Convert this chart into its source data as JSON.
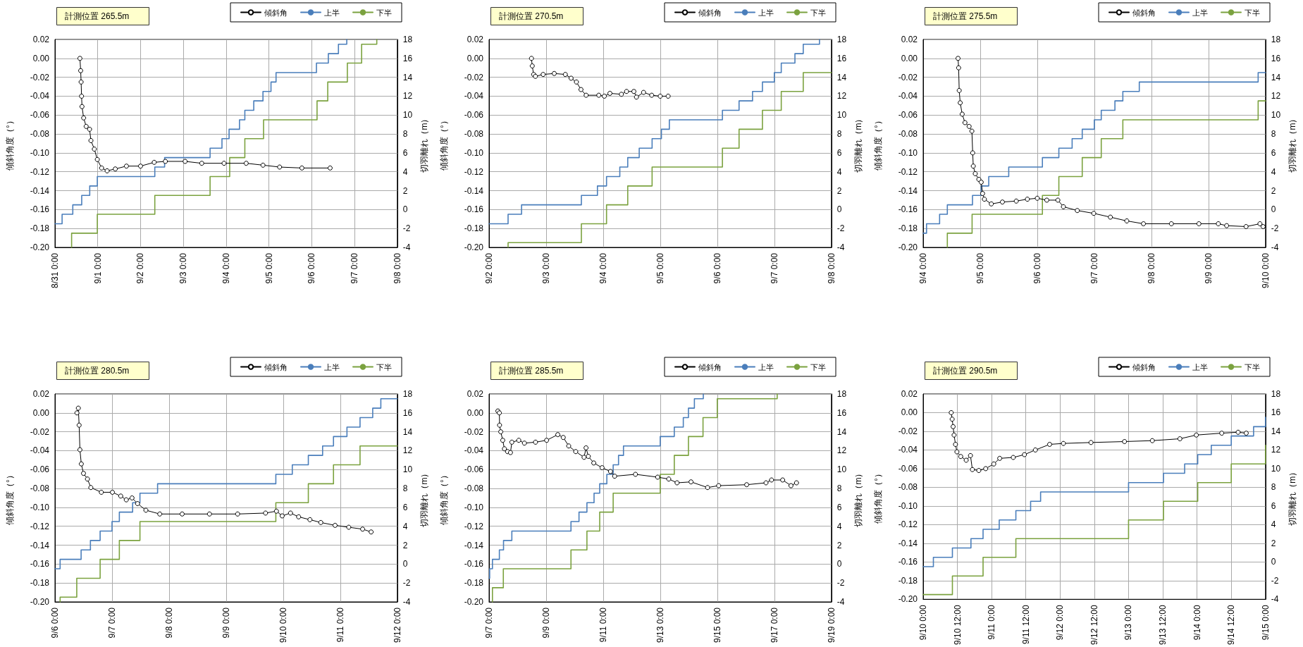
{
  "chart_data": [
    {
      "type": "line",
      "title": "計測位置 265.5m",
      "ylabel": "傾斜角度（°）",
      "y2label": "切羽離れ（m）",
      "grid": true,
      "legend": "top right",
      "xlim": [
        "--08-31T00:00",
        "--09-08T00:00"
      ],
      "xticks": [
        {
          "value": "--08-31T00:00",
          "label": "8/31 0:00"
        },
        {
          "value": "--09-01T00:00",
          "label": "9/1 0:00"
        },
        {
          "value": "--09-02T00:00",
          "label": "9/2 0:00"
        },
        {
          "value": "--09-03T00:00",
          "label": "9/3 0:00"
        },
        {
          "value": "--09-04T00:00",
          "label": "9/4 0:00"
        },
        {
          "value": "--09-05T00:00",
          "label": "9/5 0:00"
        },
        {
          "value": "--09-06T00:00",
          "label": "9/6 0:00"
        },
        {
          "value": "--09-07T00:00",
          "label": "9/7 0:00"
        },
        {
          "value": "--09-08T00:00",
          "label": "9/8 0:00"
        }
      ],
      "ylim": [
        -0.2,
        0.02
      ],
      "yticks": [
        {
          "value": -0.2,
          "label": "-0.20"
        },
        {
          "value": -0.18,
          "label": "-0.18"
        },
        {
          "value": -0.16,
          "label": "-0.16"
        },
        {
          "value": -0.14,
          "label": "-0.14"
        },
        {
          "value": -0.12,
          "label": "-0.12"
        },
        {
          "value": -0.1,
          "label": "-0.10"
        },
        {
          "value": -0.08,
          "label": "-0.08"
        },
        {
          "value": -0.06,
          "label": "-0.06"
        },
        {
          "value": -0.04,
          "label": "-0.04"
        },
        {
          "value": -0.02,
          "label": "-0.02"
        },
        {
          "value": 0,
          "label": "0.00"
        },
        {
          "value": 0.02,
          "label": "0.02"
        }
      ],
      "y2lim": [
        -4,
        18
      ],
      "y2ticks": [
        -4,
        -2,
        0,
        2,
        4,
        6,
        8,
        10,
        12,
        14,
        16,
        18
      ],
      "series": [
        {
          "name": "傾斜角",
          "type": "line",
          "color": "#000000",
          "marker": "circle",
          "x": [
            "--08-31T14:00",
            "--08-31T14:25",
            "--08-31T14:40",
            "--08-31T14:55",
            "--08-31T15:10",
            "--08-31T16:05",
            "--08-31T17:30",
            "--08-31T19:25",
            "--08-31T20:10",
            "--08-31T22:05",
            "--08-31T23:45",
            "--09-01T02:10",
            "--09-01T05:15",
            "--09-01T09:50",
            "--09-01T16:05",
            "--09-02T00:00",
            "--09-02T07:40",
            "--09-02T13:55",
            "--09-03T01:00",
            "--09-03T10:20",
            "--09-03T22:50",
            "--09-04T11:15",
            "--09-04T20:40",
            "--09-05T06:00",
            "--09-05T18:30",
            "--09-06T10:20"
          ],
          "values": [
            0.0,
            -0.013,
            -0.025,
            -0.04,
            -0.051,
            -0.063,
            -0.072,
            -0.075,
            -0.087,
            -0.096,
            -0.107,
            -0.116,
            -0.119,
            -0.117,
            -0.114,
            -0.114,
            -0.11,
            -0.109,
            -0.109,
            -0.111,
            -0.111,
            -0.111,
            -0.113,
            -0.115,
            -0.116,
            -0.116
          ]
        },
        {
          "name": "上半",
          "type": "step",
          "axis": "y2",
          "color": "#4a7ebb",
          "x": [
            "--08-31T00:00",
            "--08-31T04:00",
            "--08-31T10:00",
            "--08-31T15:00",
            "--08-31T19:30",
            "--08-31T23:45",
            "--09-02T08:00",
            "--09-02T13:30",
            "--09-03T15:00",
            "--09-03T21:40",
            "--09-04T01:40",
            "--09-04T07:30",
            "--09-04T10:30",
            "--09-04T15:30",
            "--09-04T20:40",
            "--09-05T01:10",
            "--09-05T04:00",
            "--09-06T02:40",
            "--09-06T09:20",
            "--09-06T15:00",
            "--09-06T19:40"
          ],
          "values": [
            -1.5,
            -0.5,
            0.5,
            1.5,
            2.5,
            3.5,
            4.5,
            5.5,
            6.5,
            7.5,
            8.5,
            9.5,
            10.5,
            11.5,
            12.5,
            13.5,
            14.5,
            15.5,
            16.5,
            17.5,
            18
          ]
        },
        {
          "name": "下半",
          "type": "step",
          "axis": "y2",
          "color": "#7ba23f",
          "x": [
            "--08-31T09:20",
            "--08-31T09:20",
            "--08-31T23:45",
            "--09-02T08:00",
            "--09-03T15:00",
            "--09-04T02:00",
            "--09-04T10:30",
            "--09-04T21:00",
            "--09-06T03:00",
            "--09-06T09:00",
            "--09-06T20:00",
            "--09-07T04:00",
            "--09-07T12:30"
          ],
          "values": [
            -4,
            -2.5,
            -0.5,
            1.5,
            3.5,
            5.5,
            7.5,
            9.5,
            11.5,
            13.5,
            15.5,
            17.5,
            18
          ]
        }
      ]
    },
    {
      "type": "line",
      "title": "計測位置 270.5m",
      "ylabel": "傾斜角度（°）",
      "y2label": "切羽離れ（m）",
      "grid": true,
      "legend": "top right",
      "xlim": [
        "--09-02T00:00",
        "--09-08T00:00"
      ],
      "xticks": [
        {
          "value": "--09-02T00:00",
          "label": "9/2 0:00"
        },
        {
          "value": "--09-03T00:00",
          "label": "9/3 0:00"
        },
        {
          "value": "--09-04T00:00",
          "label": "9/4 0:00"
        },
        {
          "value": "--09-05T00:00",
          "label": "9/5 0:00"
        },
        {
          "value": "--09-06T00:00",
          "label": "9/6 0:00"
        },
        {
          "value": "--09-07T00:00",
          "label": "9/7 0:00"
        },
        {
          "value": "--09-08T00:00",
          "label": "9/8 0:00"
        }
      ],
      "ylim": [
        -0.2,
        0.02
      ],
      "yticks": [
        {
          "value": -0.2,
          "label": "-0.20"
        },
        {
          "value": -0.18,
          "label": "-0.18"
        },
        {
          "value": -0.16,
          "label": "-0.16"
        },
        {
          "value": -0.14,
          "label": "-0.14"
        },
        {
          "value": -0.12,
          "label": "-0.12"
        },
        {
          "value": -0.1,
          "label": "-0.10"
        },
        {
          "value": -0.08,
          "label": "-0.08"
        },
        {
          "value": -0.06,
          "label": "-0.06"
        },
        {
          "value": -0.04,
          "label": "-0.04"
        },
        {
          "value": -0.02,
          "label": "-0.02"
        },
        {
          "value": 0,
          "label": "0.00"
        },
        {
          "value": 0.02,
          "label": "0.02"
        }
      ],
      "y2lim": [
        -4,
        18
      ],
      "y2ticks": [
        -4,
        -2,
        0,
        2,
        4,
        6,
        8,
        10,
        12,
        14,
        16,
        18
      ],
      "series": [
        {
          "name": "傾斜角",
          "type": "line",
          "color": "#000000",
          "marker": "circle",
          "x": [
            "--09-02T17:50",
            "--09-02T18:10",
            "--09-02T18:45",
            "--09-02T19:30",
            "--09-02T22:45",
            "--09-03T03:25",
            "--09-03T08:05",
            "--09-03T10:30",
            "--09-03T12:45",
            "--09-03T14:40",
            "--09-03T16:50",
            "--09-03T22:10",
            "--09-04T00:30",
            "--09-04T02:50",
            "--09-04T07:40",
            "--09-04T09:50",
            "--09-04T12:55",
            "--09-04T14:00",
            "--09-04T17:00",
            "--09-04T20:25",
            "--09-05T00:00",
            "--09-05T03:20"
          ],
          "values": [
            0.0,
            -0.008,
            -0.017,
            -0.019,
            -0.017,
            -0.016,
            -0.017,
            -0.021,
            -0.025,
            -0.033,
            -0.039,
            -0.039,
            -0.04,
            -0.037,
            -0.038,
            -0.035,
            -0.035,
            -0.041,
            -0.036,
            -0.039,
            -0.04,
            -0.04
          ]
        },
        {
          "name": "上半",
          "type": "step",
          "axis": "y2",
          "color": "#4a7ebb",
          "x": [
            "--09-02T00:00",
            "--09-02T08:00",
            "--09-02T13:40",
            "--09-03T14:50",
            "--09-03T21:35",
            "--09-04T01:25",
            "--09-04T07:00",
            "--09-04T10:20",
            "--09-04T15:10",
            "--09-04T20:35",
            "--09-05T00:30",
            "--09-05T03:50",
            "--09-06T02:10",
            "--09-06T09:10",
            "--09-06T14:50",
            "--09-06T19:00",
            "--09-07T00:00",
            "--09-07T02:55",
            "--09-07T08:40",
            "--09-07T12:10",
            "--09-07T19:00"
          ],
          "values": [
            -1.5,
            -0.5,
            0.5,
            1.5,
            2.5,
            3.5,
            4.5,
            5.5,
            6.5,
            7.5,
            8.5,
            9.5,
            10.5,
            11.5,
            12.5,
            13.5,
            14.5,
            15.5,
            16.5,
            17.5,
            18
          ]
        },
        {
          "name": "下半",
          "type": "step",
          "axis": "y2",
          "color": "#7ba23f",
          "x": [
            "--09-02T08:00",
            "--09-02T08:00",
            "--09-03T14:50",
            "--09-04T01:25",
            "--09-04T10:20",
            "--09-04T20:35",
            "--09-06T02:10",
            "--09-06T09:10",
            "--09-06T19:00",
            "--09-07T02:55",
            "--09-07T12:10",
            "--09-08T00:00"
          ],
          "values": [
            -4,
            -3.5,
            -1.5,
            0.5,
            2.5,
            4.5,
            6.5,
            8.5,
            10.5,
            12.5,
            14.5,
            14.5
          ]
        }
      ]
    },
    {
      "type": "line",
      "title": "計測位置 275.5m",
      "ylabel": "傾斜角度（°）",
      "y2label": "切羽離れ（m）",
      "grid": true,
      "legend": "top right",
      "xlim": [
        "--09-04T00:00",
        "--09-10T00:00"
      ],
      "xticks": [
        {
          "value": "--09-04T00:00",
          "label": "9/4 0:00"
        },
        {
          "value": "--09-05T00:00",
          "label": "9/5 0:00"
        },
        {
          "value": "--09-06T00:00",
          "label": "9/6 0:00"
        },
        {
          "value": "--09-07T00:00",
          "label": "9/7 0:00"
        },
        {
          "value": "--09-08T00:00",
          "label": "9/8 0:00"
        },
        {
          "value": "--09-09T00:00",
          "label": "9/9 0:00"
        },
        {
          "value": "--09-10T00:00",
          "label": "9/10 0:00"
        }
      ],
      "ylim": [
        -0.2,
        0.02
      ],
      "yticks": [
        {
          "value": -0.2,
          "label": "-0.20"
        },
        {
          "value": -0.18,
          "label": "-0.18"
        },
        {
          "value": -0.16,
          "label": "-0.16"
        },
        {
          "value": -0.14,
          "label": "-0.14"
        },
        {
          "value": -0.12,
          "label": "-0.12"
        },
        {
          "value": -0.1,
          "label": "-0.10"
        },
        {
          "value": -0.08,
          "label": "-0.08"
        },
        {
          "value": -0.06,
          "label": "-0.06"
        },
        {
          "value": -0.04,
          "label": "-0.04"
        },
        {
          "value": -0.02,
          "label": "-0.02"
        },
        {
          "value": 0,
          "label": "0.00"
        },
        {
          "value": 0.02,
          "label": "0.02"
        }
      ],
      "y2lim": [
        -4,
        18
      ],
      "y2ticks": [
        -4,
        -2,
        0,
        2,
        4,
        6,
        8,
        10,
        12,
        14,
        16,
        18
      ],
      "series": [
        {
          "name": "傾斜角",
          "type": "line",
          "color": "#000000",
          "marker": "circle",
          "x": [
            "--09-04T14:40",
            "--09-04T14:55",
            "--09-04T15:10",
            "--09-04T15:35",
            "--09-04T16:25",
            "--09-04T17:35",
            "--09-04T19:20",
            "--09-04T20:30",
            "--09-04T20:50",
            "--09-04T21:05",
            "--09-04T21:55",
            "--09-04T23:25",
            "--09-05T00:25",
            "--09-05T01:00",
            "--09-05T01:45",
            "--09-05T04:40",
            "--09-05T09:20",
            "--09-05T15:10",
            "--09-05T19:50",
            "--09-06T00:00",
            "--09-06T04:00",
            "--09-06T08:40",
            "--09-06T11:00",
            "--09-06T16:50",
            "--09-06T23:45",
            "--09-07T06:45",
            "--09-07T13:40",
            "--09-07T20:40",
            "--09-08T08:25",
            "--09-08T20:00",
            "--09-09T04:10",
            "--09-09T07:40",
            "--09-09T15:50",
            "--09-09T21:40",
            "--09-09T23:00"
          ],
          "values": [
            0.0,
            -0.01,
            -0.034,
            -0.047,
            -0.059,
            -0.068,
            -0.072,
            -0.077,
            -0.1,
            -0.114,
            -0.122,
            -0.128,
            -0.131,
            -0.143,
            -0.149,
            -0.154,
            -0.152,
            -0.151,
            -0.149,
            -0.148,
            -0.15,
            -0.15,
            -0.157,
            -0.161,
            -0.164,
            -0.168,
            -0.172,
            -0.175,
            -0.175,
            -0.175,
            -0.175,
            -0.177,
            -0.178,
            -0.175,
            -0.178
          ]
        },
        {
          "name": "上半",
          "type": "step",
          "axis": "y2",
          "color": "#4a7ebb",
          "x": [
            "--09-04T00:00",
            "--09-04T01:25",
            "--09-04T06:55",
            "--09-04T10:10",
            "--09-04T20:45",
            "--09-05T00:25",
            "--09-05T03:35",
            "--09-05T12:00",
            "--09-06T02:10",
            "--09-06T09:05",
            "--09-06T14:40",
            "--09-06T18:55",
            "--09-07T00:00",
            "--09-07T02:55",
            "--09-07T08:40",
            "--09-07T12:00",
            "--09-07T18:55",
            "--09-09T20:55",
            "--09-10T00:00"
          ],
          "values": [
            -2.5,
            -1.5,
            -0.5,
            0.5,
            1.5,
            2.5,
            3.5,
            4.5,
            5.5,
            6.5,
            7.5,
            8.5,
            9.5,
            10.5,
            11.5,
            12.5,
            13.5,
            14.5,
            14.5
          ]
        },
        {
          "name": "下半",
          "type": "step",
          "axis": "y2",
          "color": "#7ba23f",
          "x": [
            "--09-04T10:10",
            "--09-04T10:10",
            "--09-04T20:35",
            "--09-06T02:10",
            "--09-06T09:05",
            "--09-06T18:55",
            "--09-07T02:55",
            "--09-07T12:00",
            "--09-09T20:55",
            "--09-10T00:00"
          ],
          "values": [
            -4,
            -2.5,
            -0.5,
            1.5,
            3.5,
            5.5,
            7.5,
            9.5,
            11.5,
            11.5
          ]
        }
      ]
    },
    {
      "type": "line",
      "title": "計測位置 280.5m",
      "ylabel": "傾斜角度（°）",
      "y2label": "切羽離れ（m）",
      "grid": true,
      "legend": "top right",
      "xlim": [
        "--09-06T00:00",
        "--09-12T00:00"
      ],
      "xticks": [
        {
          "value": "--09-06T00:00",
          "label": "9/6 0:00"
        },
        {
          "value": "--09-07T00:00",
          "label": "9/7 0:00"
        },
        {
          "value": "--09-08T00:00",
          "label": "9/8 0:00"
        },
        {
          "value": "--09-09T00:00",
          "label": "9/9 0:00"
        },
        {
          "value": "--09-10T00:00",
          "label": "9/10 0:00"
        },
        {
          "value": "--09-11T00:00",
          "label": "9/11 0:00"
        },
        {
          "value": "--09-12T00:00",
          "label": "9/12 0:00"
        }
      ],
      "ylim": [
        -0.2,
        0.02
      ],
      "yticks": [
        {
          "value": -0.2,
          "label": "-0.20"
        },
        {
          "value": -0.18,
          "label": "-0.18"
        },
        {
          "value": -0.16,
          "label": "-0.16"
        },
        {
          "value": -0.14,
          "label": "-0.14"
        },
        {
          "value": -0.12,
          "label": "-0.12"
        },
        {
          "value": -0.1,
          "label": "-0.10"
        },
        {
          "value": -0.08,
          "label": "-0.08"
        },
        {
          "value": -0.06,
          "label": "-0.06"
        },
        {
          "value": -0.04,
          "label": "-0.04"
        },
        {
          "value": -0.02,
          "label": "-0.02"
        },
        {
          "value": 0,
          "label": "0.00"
        },
        {
          "value": 0.02,
          "label": "0.02"
        }
      ],
      "y2lim": [
        -4,
        18
      ],
      "y2ticks": [
        -4,
        -2,
        0,
        2,
        4,
        6,
        8,
        10,
        12,
        14,
        16,
        18
      ],
      "series": [
        {
          "name": "傾斜角",
          "type": "line",
          "color": "#000000",
          "marker": "circle",
          "x": [
            "--09-06T09:15",
            "--09-06T09:50",
            "--09-06T10:10",
            "--09-06T10:30",
            "--09-06T11:05",
            "--09-06T12:00",
            "--09-06T13:40",
            "--09-06T15:05",
            "--09-06T19:30",
            "--09-07T00:10",
            "--09-07T03:40",
            "--09-07T06:00",
            "--09-07T08:25",
            "--09-07T10:45",
            "--09-07T14:15",
            "--09-07T20:05",
            "--09-08T05:30",
            "--09-08T17:00",
            "--09-09T04:50",
            "--09-09T16:35",
            "--09-09T21:10",
            "--09-09T23:35",
            "--09-10T03:05",
            "--09-10T06:30",
            "--09-10T11:15",
            "--09-10T15:50",
            "--09-10T21:50",
            "--09-11T03:35",
            "--09-11T09:25",
            "--09-11T13:00"
          ],
          "values": [
            0.0,
            0.005,
            -0.013,
            -0.039,
            -0.054,
            -0.064,
            -0.07,
            -0.079,
            -0.084,
            -0.084,
            -0.088,
            -0.092,
            -0.09,
            -0.096,
            -0.103,
            -0.107,
            -0.107,
            -0.107,
            -0.107,
            -0.106,
            -0.104,
            -0.109,
            -0.106,
            -0.11,
            -0.113,
            -0.116,
            -0.119,
            -0.121,
            -0.123,
            -0.126
          ]
        },
        {
          "name": "上半",
          "type": "step",
          "axis": "y2",
          "color": "#4a7ebb",
          "x": [
            "--09-06T00:00",
            "--09-06T02:10",
            "--09-06T11:00",
            "--09-06T14:55",
            "--09-06T19:00",
            "--09-07T00:00",
            "--09-07T03:05",
            "--09-07T08:40",
            "--09-07T11:45",
            "--09-07T19:10",
            "--09-09T20:55",
            "--09-10T03:50",
            "--09-10T10:35",
            "--09-10T16:35",
            "--09-10T21:10",
            "--09-11T02:50",
            "--09-11T08:20",
            "--09-11T13:40",
            "--09-11T17:05",
            "--09-12T00:00"
          ],
          "values": [
            -0.5,
            0.5,
            1.5,
            2.5,
            3.5,
            4.5,
            5.5,
            6.5,
            7.5,
            8.5,
            9.5,
            10.5,
            11.5,
            12.5,
            13.5,
            14.5,
            15.5,
            16.5,
            17.5,
            17.5
          ]
        },
        {
          "name": "下半",
          "type": "step",
          "axis": "y2",
          "color": "#7ba23f",
          "x": [
            "--09-06T02:10",
            "--09-06T02:10",
            "--09-06T09:10",
            "--09-06T19:00",
            "--09-07T03:05",
            "--09-07T11:45",
            "--09-09T20:55",
            "--09-10T10:35",
            "--09-10T21:10",
            "--09-11T08:20",
            "--09-12T00:00"
          ],
          "values": [
            -4,
            -3.5,
            -1.5,
            0.5,
            2.5,
            4.5,
            6.5,
            8.5,
            10.5,
            12.5,
            12.5
          ]
        }
      ]
    },
    {
      "type": "line",
      "title": "計測位置 285.5m",
      "ylabel": "傾斜角度（°）",
      "y2label": "切羽離れ（m）",
      "grid": true,
      "legend": "top right",
      "xlim": [
        "--09-07T00:00",
        "--09-19T00:00"
      ],
      "xticks": [
        {
          "value": "--09-07T00:00",
          "label": "9/7 0:00"
        },
        {
          "value": "--09-09T00:00",
          "label": "9/9 0:00"
        },
        {
          "value": "--09-11T00:00",
          "label": "9/11 0:00"
        },
        {
          "value": "--09-13T00:00",
          "label": "9/13 0:00"
        },
        {
          "value": "--09-15T00:00",
          "label": "9/15 0:00"
        },
        {
          "value": "--09-17T00:00",
          "label": "9/17 0:00"
        },
        {
          "value": "--09-19T00:00",
          "label": "9/19 0:00"
        }
      ],
      "ylim": [
        -0.2,
        0.02
      ],
      "yticks": [
        {
          "value": -0.2,
          "label": "-0.20"
        },
        {
          "value": -0.18,
          "label": "-0.18"
        },
        {
          "value": -0.16,
          "label": "-0.16"
        },
        {
          "value": -0.14,
          "label": "-0.14"
        },
        {
          "value": -0.12,
          "label": "-0.12"
        },
        {
          "value": -0.1,
          "label": "-0.10"
        },
        {
          "value": -0.08,
          "label": "-0.08"
        },
        {
          "value": -0.06,
          "label": "-0.06"
        },
        {
          "value": -0.04,
          "label": "-0.04"
        },
        {
          "value": -0.02,
          "label": "-0.02"
        },
        {
          "value": 0,
          "label": "0.00"
        },
        {
          "value": 0.02,
          "label": "0.02"
        }
      ],
      "y2lim": [
        -4,
        18
      ],
      "y2ticks": [
        -4,
        -2,
        0,
        2,
        4,
        6,
        8,
        10,
        12,
        14,
        16,
        18
      ],
      "series": [
        {
          "name": "傾斜角",
          "type": "line",
          "color": "#000000",
          "marker": "circle",
          "x": [
            "--09-07T07:25",
            "--09-07T08:40",
            "--09-07T08:50",
            "--09-07T09:50",
            "--09-07T11:30",
            "--09-07T12:55",
            "--09-07T15:35",
            "--09-07T18:00",
            "--09-07T19:10",
            "--09-08T01:00",
            "--09-08T05:45",
            "--09-08T15:05",
            "--09-09T00:25",
            "--09-09T09:50",
            "--09-09T14:25",
            "--09-09T19:00",
            "--09-10T00:55",
            "--09-10T07:55",
            "--09-10T09:35",
            "--09-10T11:30",
            "--09-10T16:05",
            "--09-10T23:05",
            "--09-11T06:10",
            "--09-11T09:40",
            "--09-12T03:10",
            "--09-12T21:50",
            "--09-13T07:10",
            "--09-13T14:10",
            "--09-14T01:55",
            "--09-14T15:50",
            "--09-15T01:10",
            "--09-16T00:45",
            "--09-16T17:00",
            "--09-16T21:40",
            "--09-17T07:00",
            "--09-17T14:00",
            "--09-17T18:40"
          ],
          "values": [
            0.002,
            0.0,
            -0.013,
            -0.02,
            -0.029,
            -0.038,
            -0.041,
            -0.042,
            -0.031,
            -0.029,
            -0.032,
            -0.031,
            -0.029,
            -0.023,
            -0.026,
            -0.035,
            -0.041,
            -0.047,
            -0.037,
            -0.046,
            -0.053,
            -0.058,
            -0.062,
            -0.067,
            -0.065,
            -0.068,
            -0.07,
            -0.074,
            -0.073,
            -0.079,
            -0.077,
            -0.076,
            -0.074,
            -0.071,
            -0.071,
            -0.077,
            -0.074
          ]
        },
        {
          "name": "上半",
          "type": "step",
          "axis": "y2",
          "color": "#4a7ebb",
          "x": [
            "--09-07T00:00",
            "--09-07T00:30",
            "--09-07T02:50",
            "--09-07T08:40",
            "--09-07T12:10",
            "--09-07T19:10",
            "--09-09T20:55",
            "--09-10T03:40",
            "--09-10T10:20",
            "--09-10T16:20",
            "--09-10T21:05",
            "--09-11T03:05",
            "--09-11T08:25",
            "--09-11T12:55",
            "--09-11T17:05",
            "--09-13T00:00",
            "--09-13T11:50",
            "--09-13T19:25",
            "--09-13T23:45",
            "--09-14T04:45",
            "--09-14T12:15"
          ],
          "values": [
            -1.5,
            -0.5,
            0.5,
            1.5,
            2.5,
            3.5,
            4.5,
            5.5,
            6.5,
            7.5,
            8.5,
            9.5,
            10.5,
            11.5,
            12.5,
            13.5,
            14.5,
            15.5,
            16.5,
            17.5,
            18
          ]
        },
        {
          "name": "下半",
          "type": "step",
          "axis": "y2",
          "color": "#7ba23f",
          "x": [
            "--09-07T02:50",
            "--09-07T02:50",
            "--09-07T12:00",
            "--09-09T20:55",
            "--09-10T10:20",
            "--09-10T21:05",
            "--09-11T08:25",
            "--09-13T00:00",
            "--09-13T11:50",
            "--09-13T23:45",
            "--09-14T12:00",
            "--09-15T00:00",
            "--09-17T02:25"
          ],
          "values": [
            -4,
            -2.5,
            -0.5,
            1.5,
            3.5,
            5.5,
            7.5,
            9.5,
            11.5,
            13.5,
            15.5,
            17.5,
            18
          ]
        }
      ]
    },
    {
      "type": "line",
      "title": "計測位置 290.5m",
      "ylabel": "傾斜角度（°）",
      "y2label": "切羽離れ（m）",
      "grid": true,
      "legend": "top right",
      "xlim": [
        "--09-10T00:00",
        "--09-15T00:00"
      ],
      "xticks": [
        {
          "value": "--09-10T00:00",
          "label": "9/10 0:00"
        },
        {
          "value": "--09-10T12:00",
          "label": "9/10 12:00"
        },
        {
          "value": "--09-11T00:00",
          "label": "9/11 0:00"
        },
        {
          "value": "--09-11T12:00",
          "label": "9/11 12:00"
        },
        {
          "value": "--09-12T00:00",
          "label": "9/12 0:00"
        },
        {
          "value": "--09-12T12:00",
          "label": "9/12 12:00"
        },
        {
          "value": "--09-13T00:00",
          "label": "9/13 0:00"
        },
        {
          "value": "--09-13T12:00",
          "label": "9/13 12:00"
        },
        {
          "value": "--09-14T00:00",
          "label": "9/14 0:00"
        },
        {
          "value": "--09-14T12:00",
          "label": "9/14 12:00"
        },
        {
          "value": "--09-15T00:00",
          "label": "9/15 0:00"
        }
      ],
      "ylim": [
        -0.2,
        0.02
      ],
      "yticks": [
        {
          "value": -0.2,
          "label": "-0.20"
        },
        {
          "value": -0.18,
          "label": "-0.18"
        },
        {
          "value": -0.16,
          "label": "-0.16"
        },
        {
          "value": -0.14,
          "label": "-0.14"
        },
        {
          "value": -0.12,
          "label": "-0.12"
        },
        {
          "value": -0.1,
          "label": "-0.10"
        },
        {
          "value": -0.08,
          "label": "-0.08"
        },
        {
          "value": -0.06,
          "label": "-0.06"
        },
        {
          "value": -0.04,
          "label": "-0.04"
        },
        {
          "value": -0.02,
          "label": "-0.02"
        },
        {
          "value": 0,
          "label": "0.00"
        },
        {
          "value": 0.02,
          "label": "0.02"
        }
      ],
      "y2lim": [
        -4,
        18
      ],
      "y2ticks": [
        -4,
        -2,
        0,
        2,
        4,
        6,
        8,
        10,
        12,
        14,
        16,
        18
      ],
      "series": [
        {
          "name": "傾斜角",
          "type": "line",
          "color": "#000000",
          "marker": "circle",
          "x": [
            "--09-10T09:50",
            "--09-10T10:10",
            "--09-10T10:30",
            "--09-10T10:50",
            "--09-10T11:20",
            "--09-10T11:50",
            "--09-10T13:10",
            "--09-10T15:05",
            "--09-10T16:35",
            "--09-10T17:15",
            "--09-10T19:30",
            "--09-10T21:55",
            "--09-11T00:45",
            "--09-11T02:50",
            "--09-11T07:35",
            "--09-11T11:30",
            "--09-11T15:20",
            "--09-11T20:20",
            "--09-12T01:10",
            "--09-12T10:50",
            "--09-12T22:35",
            "--09-13T08:20",
            "--09-13T18:00",
            "--09-13T23:45",
            "--09-14T08:40",
            "--09-14T14:25",
            "--09-14T17:15"
          ],
          "values": [
            0.0,
            -0.007,
            -0.015,
            -0.024,
            -0.034,
            -0.042,
            -0.047,
            -0.051,
            -0.046,
            -0.061,
            -0.062,
            -0.06,
            -0.055,
            -0.049,
            -0.048,
            -0.045,
            -0.04,
            -0.034,
            -0.033,
            -0.032,
            -0.031,
            -0.03,
            -0.028,
            -0.024,
            -0.022,
            -0.021,
            -0.022
          ]
        },
        {
          "name": "上半",
          "type": "step",
          "axis": "y2",
          "color": "#4a7ebb",
          "x": [
            "--09-10T00:00",
            "--09-10T03:35",
            "--09-10T10:15",
            "--09-10T16:45",
            "--09-10T21:00",
            "--09-11T02:40",
            "--09-11T08:30",
            "--09-11T13:40",
            "--09-11T17:10",
            "--09-13T00:00",
            "--09-13T12:15",
            "--09-13T19:40",
            "--09-14T00:15",
            "--09-14T05:00",
            "--09-14T12:00",
            "--09-14T19:50",
            "--09-15T00:00"
          ],
          "values": [
            -0.5,
            0.5,
            1.5,
            2.5,
            3.5,
            4.5,
            5.5,
            6.5,
            7.5,
            8.5,
            9.5,
            10.5,
            11.5,
            12.5,
            13.5,
            14.5,
            15.5
          ]
        },
        {
          "name": "下半",
          "type": "step",
          "axis": "y2",
          "color": "#7ba23f",
          "x": [
            "--09-10T00:00",
            "--09-10T10:15",
            "--09-10T21:00",
            "--09-11T08:30",
            "--09-13T00:00",
            "--09-13T12:15",
            "--09-14T00:15",
            "--09-14T12:00",
            "--09-15T00:00"
          ],
          "values": [
            -3.5,
            -1.5,
            0.5,
            2.5,
            4.5,
            6.5,
            8.5,
            10.5,
            12.5
          ]
        }
      ]
    }
  ]
}
